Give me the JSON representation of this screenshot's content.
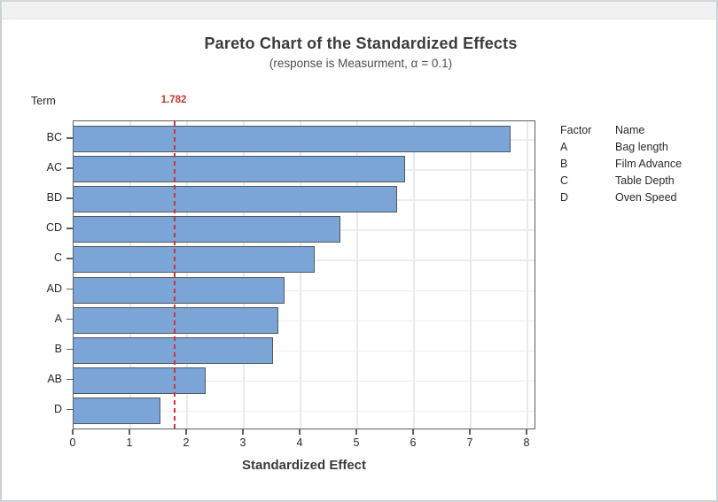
{
  "window": {
    "background": "#ffffff",
    "titlebar_color": "#f1f1f2",
    "border_color": "#ccd1d8"
  },
  "chart_data": {
    "type": "bar",
    "orientation": "horizontal",
    "title": "Pareto Chart of the Standardized Effects",
    "subtitle": "(response is Measurment, α = 0.1)",
    "y_axis_title": "Term",
    "xlabel": "Standardized Effect",
    "categories": [
      "BC",
      "AC",
      "BD",
      "CD",
      "C",
      "AD",
      "A",
      "B",
      "AB",
      "D"
    ],
    "values": [
      7.7,
      5.84,
      5.71,
      4.7,
      4.25,
      3.72,
      3.61,
      3.52,
      2.33,
      1.53
    ],
    "x_ticks": [
      0,
      1,
      2,
      3,
      4,
      5,
      6,
      7,
      8
    ],
    "xlim": [
      0,
      8.17
    ],
    "grid": true,
    "reference_line": {
      "value": 1.782,
      "label": "1.782",
      "style": "dashed"
    },
    "colors": {
      "bar_fill": "#7ba4d7",
      "bar_border": "#53565b",
      "reference": "#cf3430",
      "frame": "#5c5f63",
      "gridline": "#e9eaed"
    },
    "legend": {
      "position": "right",
      "headers": [
        "Factor",
        "Name"
      ],
      "rows": [
        [
          "A",
          "Bag length"
        ],
        [
          "B",
          "Film Advance"
        ],
        [
          "C",
          "Table Depth"
        ],
        [
          "D",
          "Oven Speed"
        ]
      ]
    }
  }
}
